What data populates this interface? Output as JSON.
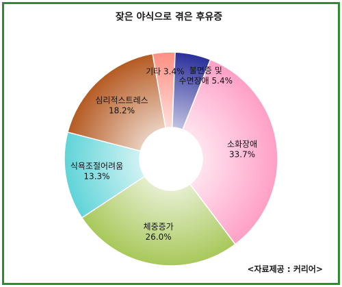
{
  "chart_data": {
    "type": "pie",
    "title": "잦은 야식으로 겪은 후유증",
    "source": "<자료제공 : 커리어>",
    "donut": true,
    "slices": [
      {
        "label": "기타",
        "value_text": "3.4%",
        "value": 3.4,
        "color": "#ff8f82"
      },
      {
        "label": "불면증 및 수면장애",
        "label_lines": [
          "불면증 및",
          "수면장애 5.4%"
        ],
        "value_text": "5.4%",
        "value": 5.4,
        "color": "#2a2f9a"
      },
      {
        "label": "소화장애",
        "value_text": "33.7%",
        "value": 33.7,
        "color": "#ff9fc6"
      },
      {
        "label": "체중증가",
        "value_text": "26.0%",
        "value": 26.0,
        "color": "#a8c85a"
      },
      {
        "label": "식욕조절어려움",
        "value_text": "13.3%",
        "value": 13.3,
        "color": "#5fd4d8"
      },
      {
        "label": "심리적스트레스",
        "value_text": "18.2%",
        "value": 18.2,
        "color": "#b55a22"
      }
    ]
  }
}
